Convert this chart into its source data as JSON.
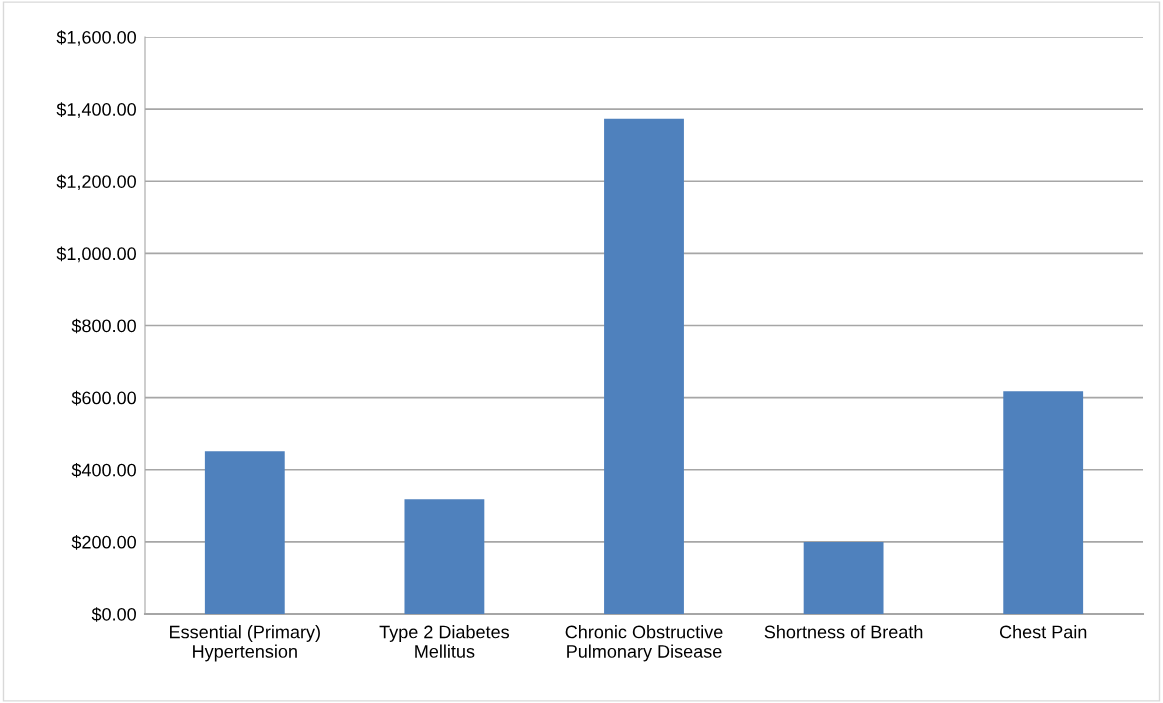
{
  "chart_data": {
    "type": "bar",
    "categories": [
      "Essential (Primary)\nHypertension",
      "Type 2 Diabetes\nMellitus",
      "Chronic Obstructive\nPulmonary Disease",
      "Shortness of Breath",
      "Chest Pain"
    ],
    "values": [
      451,
      318,
      1373,
      200,
      618
    ],
    "color": "#4f81bd",
    "ylim": [
      0,
      1600
    ],
    "yticks": [
      {
        "value": 0,
        "label": "$0.00"
      },
      {
        "value": 200,
        "label": "$200.00"
      },
      {
        "value": 400,
        "label": "$400.00"
      },
      {
        "value": 600,
        "label": "$600.00"
      },
      {
        "value": 800,
        "label": "$800.00"
      },
      {
        "value": 1000,
        "label": "$1,000.00"
      },
      {
        "value": 1200,
        "label": "$1,200.00"
      },
      {
        "value": 1400,
        "label": "$1,400.00"
      },
      {
        "value": 1600,
        "label": "$1,600.00"
      }
    ],
    "grid": "y",
    "legend": false
  }
}
